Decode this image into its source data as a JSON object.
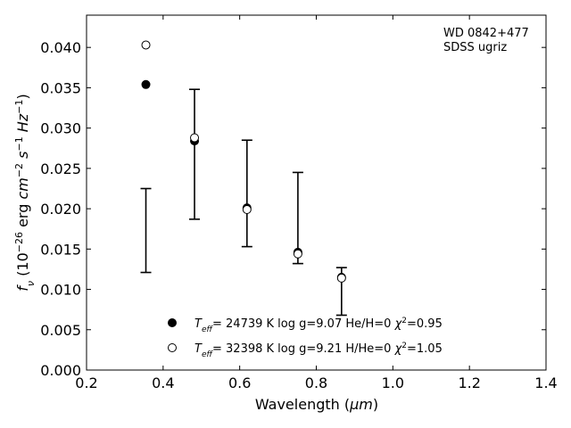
{
  "chart_data": {
    "type": "scatter",
    "annotation": [
      "WD 0842+477",
      "SDSS ugriz"
    ],
    "xlabel": "Wavelength (μm)",
    "ylabel": "f_ν (10^-26 erg cm^-2 s^-1 Hz^-1)",
    "xlim": [
      0.2,
      1.4
    ],
    "ylim": [
      0.0,
      0.044
    ],
    "xticks": [
      0.2,
      0.4,
      0.6,
      0.8,
      1.0,
      1.2,
      1.4
    ],
    "xtick_labels": [
      "0.2",
      "0.4",
      "0.6",
      "0.8",
      "1.0",
      "1.2",
      "1.4"
    ],
    "yticks": [
      0.0,
      0.005,
      0.01,
      0.015,
      0.02,
      0.025,
      0.03,
      0.035,
      0.04
    ],
    "ytick_labels": [
      "0.000",
      "0.005",
      "0.010",
      "0.015",
      "0.020",
      "0.025",
      "0.030",
      "0.035",
      "0.040"
    ],
    "grid": false,
    "legend_position": "bottom-center",
    "observed": {
      "x": [
        0.355,
        0.482,
        0.619,
        0.752,
        0.866
      ],
      "ylow": [
        0.0121,
        0.0187,
        0.0153,
        0.0132,
        0.0068
      ],
      "yhigh": [
        0.0225,
        0.0348,
        0.0285,
        0.0245,
        0.0127
      ]
    },
    "series": [
      {
        "label": "T_eff= 24739 K  log g=9.07  He/H=0  χ²=0.95",
        "marker": "filled-circle",
        "x": [
          0.355,
          0.482,
          0.619,
          0.752,
          0.866
        ],
        "y": [
          0.0354,
          0.0284,
          0.0201,
          0.0146,
          0.0115
        ]
      },
      {
        "label": "T_eff= 32398 K  log g=9.21  H/He=0  χ²=1.05",
        "marker": "open-circle",
        "x": [
          0.355,
          0.482,
          0.619,
          0.752,
          0.866
        ],
        "y": [
          0.0403,
          0.0288,
          0.0199,
          0.0144,
          0.0114
        ]
      }
    ]
  }
}
